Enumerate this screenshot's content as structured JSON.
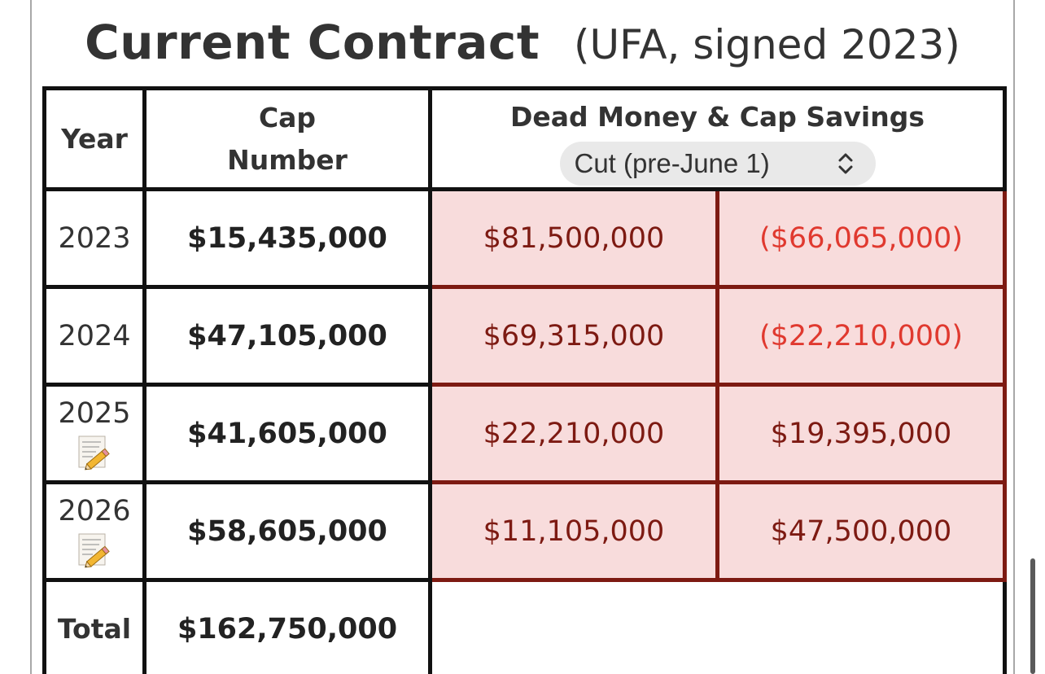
{
  "title": {
    "main": "Current Contract",
    "sub": "(UFA, signed 2023)"
  },
  "table": {
    "headers": {
      "year": "Year",
      "cap_line1": "Cap",
      "cap_line2": "Number",
      "dead_money": "Dead Money & Cap Savings"
    },
    "scenario_select": {
      "value": "Cut (pre-June 1)",
      "icon": "chevron-up-down-icon"
    },
    "rows": [
      {
        "year": "2023",
        "cap": "$15,435,000",
        "dead": "$81,500,000",
        "savings": "($66,065,000)",
        "savings_negative": true,
        "note_icon": false
      },
      {
        "year": "2024",
        "cap": "$47,105,000",
        "dead": "$69,315,000",
        "savings": "($22,210,000)",
        "savings_negative": true,
        "note_icon": false
      },
      {
        "year": "2025",
        "cap": "$41,605,000",
        "dead": "$22,210,000",
        "savings": "$19,395,000",
        "savings_negative": false,
        "note_icon": true
      },
      {
        "year": "2026",
        "cap": "$58,605,000",
        "dead": "$11,105,000",
        "savings": "$47,500,000",
        "savings_negative": false,
        "note_icon": true
      }
    ],
    "total": {
      "label": "Total",
      "value": "$162,750,000"
    }
  },
  "colors": {
    "cell_background": "#f8dcdc",
    "dead_money_text": "#7d1a12",
    "negative_savings_text": "#e0392f",
    "cell_border": "#7d1a12",
    "table_border": "#111111"
  },
  "icons": {
    "note": "memo-pencil-icon"
  }
}
